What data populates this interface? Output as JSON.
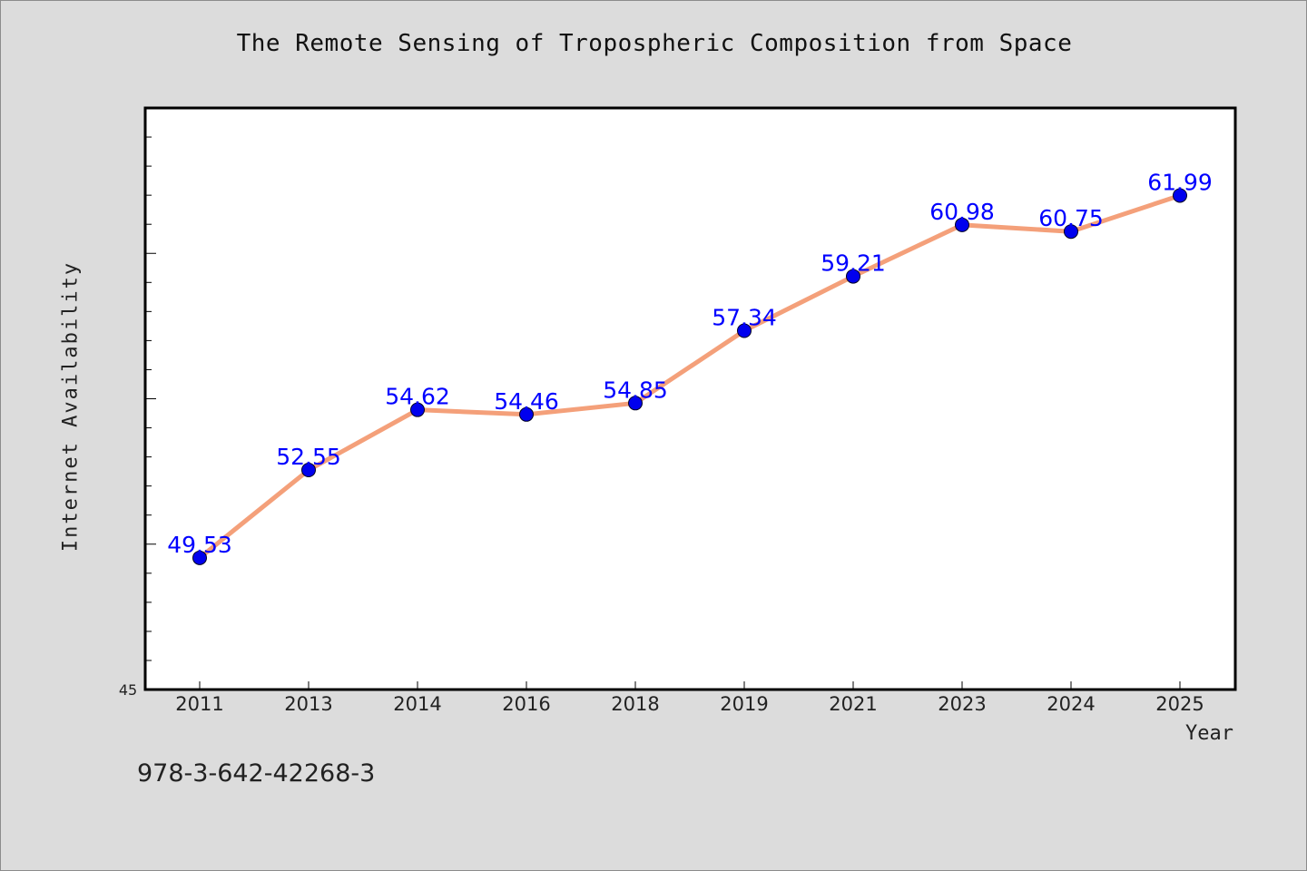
{
  "chart_data": {
    "type": "line",
    "title": "The Remote Sensing of Tropospheric Composition from Space",
    "xlabel": "Year",
    "ylabel": "Internet Availability",
    "categories": [
      "2011",
      "2013",
      "2014",
      "2016",
      "2018",
      "2019",
      "2021",
      "2023",
      "2024",
      "2025"
    ],
    "series": [
      {
        "values": [
          49.53,
          52.55,
          54.62,
          54.46,
          54.85,
          57.34,
          59.21,
          60.98,
          60.75,
          61.99
        ],
        "labels": [
          "49.53",
          "52.55",
          "54.62",
          "54.46",
          "54.85",
          "57.34",
          "59.21",
          "60.98",
          "60.75",
          "61.99"
        ],
        "line_color": "#f4a07a",
        "marker_color": "#0000ee"
      }
    ],
    "ylim": [
      45,
      65
    ],
    "y_min_label": "45",
    "grid": false,
    "legend": "none",
    "background": "#dcdcdc",
    "plot_background": "#ffffff"
  },
  "annotation": "978-3-642-42268-3"
}
